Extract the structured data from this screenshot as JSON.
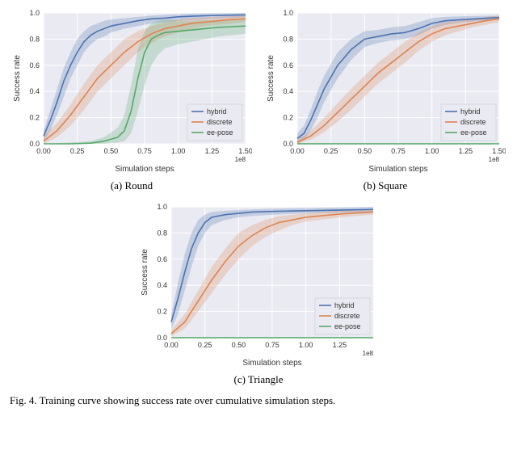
{
  "figure_caption": "Fig. 4.   Training curve showing success rate over cumulative simulation steps.",
  "global": {
    "plot_bg": "#eaeaf2",
    "grid_color": "#ffffff",
    "axis_text_color": "#333333",
    "font_family": "Arial, sans-serif",
    "tick_fontsize": 9,
    "label_fontsize": 10,
    "legend_fontsize": 9,
    "line_width": 1.6,
    "band_opacity": 0.25
  },
  "series_meta": {
    "hybrid": {
      "label": "hybrid",
      "color": "#4c72b0"
    },
    "discrete": {
      "label": "discrete",
      "color": "#dd8452"
    },
    "ee-pose": {
      "label": "ee-pose",
      "color": "#55a868"
    }
  },
  "panels": [
    {
      "id": "round",
      "subcaption": "(a) Round",
      "xlabel": "Simulation steps",
      "ylabel": "Success rate",
      "x_sci": "1e8",
      "xlim": [
        0.0,
        1.5
      ],
      "ylim": [
        0.0,
        1.0
      ],
      "xticks": [
        0.0,
        0.25,
        0.5,
        0.75,
        1.0,
        1.25,
        1.5
      ],
      "xtick_labels": [
        "0.00",
        "0.25",
        "0.50",
        "0.75",
        "1.00",
        "1.25",
        "1.50"
      ],
      "yticks": [
        0.0,
        0.2,
        0.4,
        0.6,
        0.8,
        1.0
      ],
      "ytick_labels": [
        "0.0",
        "0.2",
        "0.4",
        "0.6",
        "0.8",
        "1.0"
      ],
      "legend_pos": "lower-right",
      "series": {
        "hybrid": {
          "x": [
            0.0,
            0.05,
            0.1,
            0.15,
            0.2,
            0.25,
            0.3,
            0.35,
            0.4,
            0.45,
            0.5,
            0.6,
            0.7,
            0.8,
            0.9,
            1.0,
            1.1,
            1.25,
            1.5
          ],
          "y": [
            0.06,
            0.18,
            0.32,
            0.48,
            0.6,
            0.7,
            0.78,
            0.83,
            0.86,
            0.88,
            0.9,
            0.92,
            0.94,
            0.955,
            0.96,
            0.97,
            0.975,
            0.98,
            0.985
          ],
          "lo": [
            0.02,
            0.1,
            0.22,
            0.36,
            0.5,
            0.6,
            0.7,
            0.76,
            0.8,
            0.82,
            0.85,
            0.88,
            0.9,
            0.92,
            0.93,
            0.94,
            0.945,
            0.955,
            0.965
          ],
          "hi": [
            0.1,
            0.26,
            0.42,
            0.58,
            0.7,
            0.8,
            0.86,
            0.9,
            0.92,
            0.94,
            0.95,
            0.96,
            0.97,
            0.98,
            0.985,
            0.99,
            0.995,
            0.998,
            1.0
          ]
        },
        "discrete": {
          "x": [
            0.0,
            0.1,
            0.2,
            0.3,
            0.4,
            0.5,
            0.6,
            0.7,
            0.8,
            0.9,
            1.0,
            1.1,
            1.2,
            1.3,
            1.4,
            1.5
          ],
          "y": [
            0.02,
            0.1,
            0.22,
            0.36,
            0.5,
            0.6,
            0.7,
            0.78,
            0.84,
            0.88,
            0.9,
            0.92,
            0.93,
            0.94,
            0.95,
            0.955
          ],
          "lo": [
            0.0,
            0.05,
            0.14,
            0.26,
            0.4,
            0.5,
            0.6,
            0.7,
            0.77,
            0.82,
            0.85,
            0.88,
            0.9,
            0.91,
            0.92,
            0.93
          ],
          "hi": [
            0.06,
            0.16,
            0.3,
            0.46,
            0.6,
            0.7,
            0.8,
            0.86,
            0.9,
            0.93,
            0.95,
            0.96,
            0.965,
            0.97,
            0.975,
            0.98
          ]
        },
        "ee-pose": {
          "x": [
            0.0,
            0.2,
            0.35,
            0.45,
            0.55,
            0.6,
            0.65,
            0.7,
            0.75,
            0.8,
            0.85,
            0.9,
            1.0,
            1.1,
            1.2,
            1.3,
            1.4,
            1.5
          ],
          "y": [
            0.0,
            0.0,
            0.005,
            0.02,
            0.05,
            0.1,
            0.25,
            0.5,
            0.7,
            0.8,
            0.83,
            0.85,
            0.86,
            0.87,
            0.88,
            0.89,
            0.895,
            0.9
          ],
          "lo": [
            0.0,
            0.0,
            0.0,
            0.0,
            0.01,
            0.02,
            0.08,
            0.25,
            0.45,
            0.6,
            0.68,
            0.73,
            0.76,
            0.78,
            0.8,
            0.82,
            0.83,
            0.84
          ],
          "hi": [
            0.0,
            0.01,
            0.02,
            0.05,
            0.12,
            0.22,
            0.45,
            0.72,
            0.86,
            0.92,
            0.94,
            0.95,
            0.94,
            0.94,
            0.945,
            0.95,
            0.95,
            0.955
          ]
        }
      }
    },
    {
      "id": "square",
      "subcaption": "(b) Square",
      "xlabel": "Simulation steps",
      "ylabel": "Success rate",
      "x_sci": "1e8",
      "xlim": [
        0.0,
        1.5
      ],
      "ylim": [
        0.0,
        1.0
      ],
      "xticks": [
        0.0,
        0.25,
        0.5,
        0.75,
        1.0,
        1.25,
        1.5
      ],
      "xtick_labels": [
        "0.00",
        "0.25",
        "0.50",
        "0.75",
        "1.00",
        "1.25",
        "1.50"
      ],
      "yticks": [
        0.0,
        0.2,
        0.4,
        0.6,
        0.8,
        1.0
      ],
      "ytick_labels": [
        "0.0",
        "0.2",
        "0.4",
        "0.6",
        "0.8",
        "1.0"
      ],
      "legend_pos": "lower-right",
      "series": {
        "hybrid": {
          "x": [
            0.0,
            0.05,
            0.1,
            0.15,
            0.2,
            0.3,
            0.4,
            0.5,
            0.6,
            0.7,
            0.8,
            0.9,
            1.0,
            1.1,
            1.25,
            1.5
          ],
          "y": [
            0.04,
            0.08,
            0.18,
            0.3,
            0.42,
            0.6,
            0.72,
            0.8,
            0.82,
            0.84,
            0.85,
            0.88,
            0.92,
            0.94,
            0.95,
            0.965
          ],
          "lo": [
            0.01,
            0.03,
            0.1,
            0.2,
            0.32,
            0.5,
            0.64,
            0.74,
            0.77,
            0.79,
            0.8,
            0.83,
            0.88,
            0.91,
            0.93,
            0.95
          ],
          "hi": [
            0.08,
            0.14,
            0.26,
            0.4,
            0.52,
            0.7,
            0.8,
            0.86,
            0.87,
            0.89,
            0.9,
            0.93,
            0.96,
            0.97,
            0.975,
            0.98
          ]
        },
        "discrete": {
          "x": [
            0.0,
            0.1,
            0.2,
            0.3,
            0.4,
            0.5,
            0.6,
            0.7,
            0.8,
            0.9,
            1.0,
            1.1,
            1.2,
            1.3,
            1.4,
            1.5
          ],
          "y": [
            0.01,
            0.06,
            0.14,
            0.24,
            0.34,
            0.44,
            0.54,
            0.62,
            0.7,
            0.78,
            0.84,
            0.88,
            0.9,
            0.92,
            0.94,
            0.955
          ],
          "lo": [
            0.0,
            0.03,
            0.09,
            0.17,
            0.26,
            0.36,
            0.46,
            0.54,
            0.62,
            0.71,
            0.78,
            0.83,
            0.86,
            0.89,
            0.91,
            0.93
          ],
          "hi": [
            0.03,
            0.1,
            0.2,
            0.31,
            0.42,
            0.52,
            0.62,
            0.7,
            0.78,
            0.85,
            0.9,
            0.93,
            0.94,
            0.95,
            0.97,
            0.98
          ]
        },
        "ee-pose": {
          "x": [
            0.0,
            0.25,
            0.5,
            0.75,
            1.0,
            1.25,
            1.5
          ],
          "y": [
            0.0,
            0.0,
            0.0,
            0.0,
            0.0,
            0.0,
            0.0
          ],
          "lo": [
            0.0,
            0.0,
            0.0,
            0.0,
            0.0,
            0.0,
            0.0
          ],
          "hi": [
            0.005,
            0.005,
            0.005,
            0.005,
            0.005,
            0.005,
            0.005
          ]
        }
      }
    },
    {
      "id": "triangle",
      "subcaption": "(c) Triangle",
      "xlabel": "Simulation steps",
      "ylabel": "Success rate",
      "x_sci": "1e8",
      "xlim": [
        0.0,
        1.5
      ],
      "ylim": [
        0.0,
        1.0
      ],
      "xticks": [
        0.0,
        0.25,
        0.5,
        0.75,
        1.0,
        1.25
      ],
      "xtick_labels": [
        "0.00",
        "0.25",
        "0.50",
        "0.75",
        "1.00",
        "1.25"
      ],
      "yticks": [
        0.0,
        0.2,
        0.4,
        0.6,
        0.8,
        1.0
      ],
      "ytick_labels": [
        "0.0",
        "0.2",
        "0.4",
        "0.6",
        "0.8",
        "1.0"
      ],
      "legend_pos": "lower-right",
      "series": {
        "hybrid": {
          "x": [
            0.0,
            0.05,
            0.1,
            0.15,
            0.2,
            0.25,
            0.3,
            0.4,
            0.5,
            0.6,
            0.75,
            1.0,
            1.25,
            1.5
          ],
          "y": [
            0.12,
            0.3,
            0.5,
            0.68,
            0.8,
            0.88,
            0.92,
            0.94,
            0.95,
            0.96,
            0.965,
            0.97,
            0.975,
            0.98
          ],
          "lo": [
            0.06,
            0.18,
            0.36,
            0.54,
            0.7,
            0.8,
            0.86,
            0.9,
            0.92,
            0.93,
            0.94,
            0.95,
            0.955,
            0.96
          ],
          "hi": [
            0.18,
            0.42,
            0.64,
            0.8,
            0.9,
            0.94,
            0.96,
            0.97,
            0.975,
            0.98,
            0.985,
            0.99,
            0.995,
            1.0
          ]
        },
        "discrete": {
          "x": [
            0.0,
            0.1,
            0.2,
            0.3,
            0.4,
            0.5,
            0.6,
            0.7,
            0.8,
            0.9,
            1.0,
            1.1,
            1.25,
            1.5
          ],
          "y": [
            0.03,
            0.12,
            0.28,
            0.44,
            0.58,
            0.7,
            0.78,
            0.84,
            0.88,
            0.9,
            0.92,
            0.93,
            0.945,
            0.96
          ],
          "lo": [
            0.01,
            0.07,
            0.2,
            0.34,
            0.48,
            0.6,
            0.7,
            0.77,
            0.82,
            0.86,
            0.89,
            0.9,
            0.92,
            0.94
          ],
          "hi": [
            0.06,
            0.18,
            0.36,
            0.54,
            0.68,
            0.8,
            0.86,
            0.9,
            0.93,
            0.94,
            0.95,
            0.96,
            0.97,
            0.98
          ]
        },
        "ee-pose": {
          "x": [
            0.0,
            0.25,
            0.5,
            0.75,
            1.0,
            1.25,
            1.5
          ],
          "y": [
            0.0,
            0.0,
            0.0,
            0.0,
            0.0,
            0.0,
            0.0
          ],
          "lo": [
            0.0,
            0.0,
            0.0,
            0.0,
            0.0,
            0.0,
            0.0
          ],
          "hi": [
            0.005,
            0.005,
            0.005,
            0.005,
            0.005,
            0.005,
            0.005
          ]
        }
      }
    }
  ]
}
